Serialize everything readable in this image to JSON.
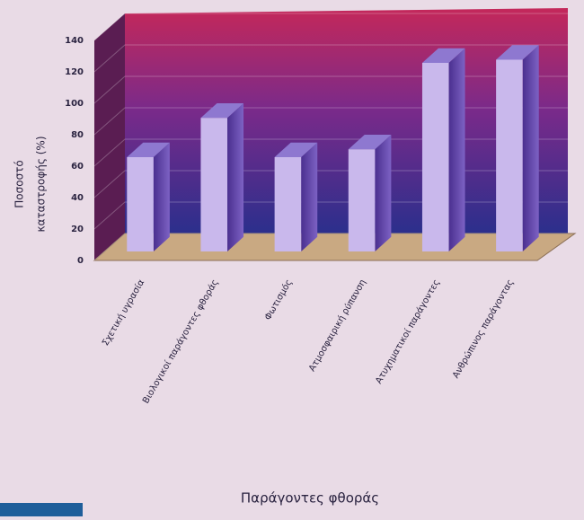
{
  "chart_data": {
    "type": "bar3d",
    "x_label": "Παράγοντες φθοράς",
    "y_label": [
      "Ποσοστό",
      "καταστροφής (%)"
    ],
    "categories": [
      "Σχετική υγρασία",
      "Βιολογικοί παράγοντες φθοράς",
      "Φωτισμός",
      "Ατμοσφαιρική ρύπανση",
      "Ατυχηματικοί παράγοντες",
      "Ανθρώπινος παράγοντας"
    ],
    "values": [
      60,
      85,
      60,
      65,
      120,
      122
    ],
    "color": "#c9b8ec",
    "ylim": [
      0,
      140
    ],
    "yticks": [
      0,
      20,
      40,
      60,
      80,
      100,
      120,
      140
    ],
    "grid": true
  }
}
